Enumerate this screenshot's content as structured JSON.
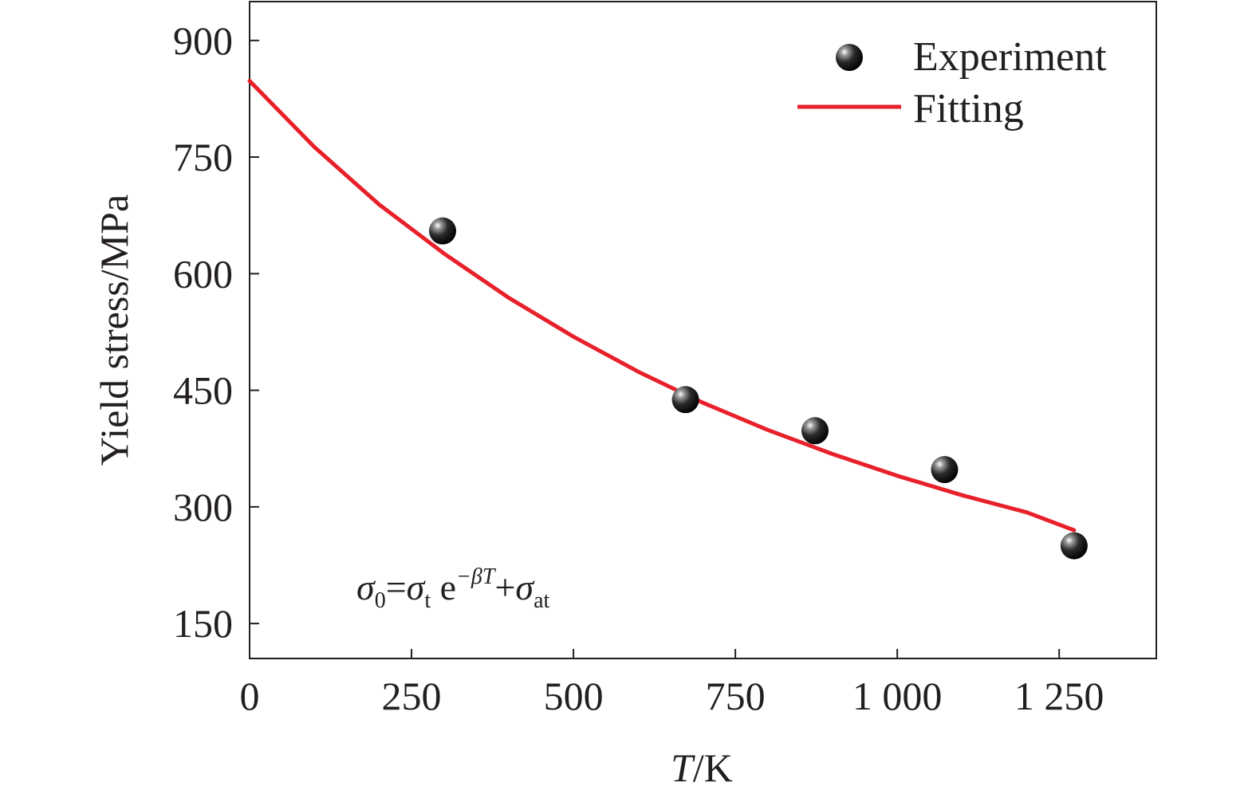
{
  "chart_data": {
    "type": "scatter",
    "xlabel_var": "T",
    "xlabel_unit": "/K",
    "ylabel": "Yield stress/MPa",
    "xlim": [
      0,
      1400
    ],
    "ylim": [
      105,
      950
    ],
    "x_ticks": [
      0,
      250,
      500,
      750,
      1000,
      1250
    ],
    "x_tick_labels": [
      "0",
      "250",
      "500",
      "750",
      "1 000",
      "1 250"
    ],
    "y_ticks": [
      150,
      300,
      450,
      600,
      750,
      900
    ],
    "y_tick_labels": [
      "150",
      "300",
      "450",
      "600",
      "750",
      "900"
    ],
    "series": [
      {
        "name": "Experiment",
        "kind": "scatter",
        "color": "#111111",
        "x": [
          298,
          673,
          873,
          1073,
          1273
        ],
        "y": [
          655,
          438,
          398,
          348,
          250
        ]
      },
      {
        "name": "Fitting",
        "kind": "line",
        "color": "#e8202a",
        "x": [
          0,
          100,
          200,
          300,
          400,
          500,
          600,
          700,
          800,
          900,
          1000,
          1100,
          1200,
          1273
        ],
        "y": [
          848,
          763,
          689,
          626,
          569,
          519,
          474,
          434,
          399,
          368,
          340,
          315,
          293,
          270
        ]
      }
    ],
    "legend_position": "top-right",
    "annotation": {
      "sigma": "σ",
      "sub_0": "0",
      "equals": "=",
      "sub_t": "t",
      "e": " e",
      "exponent": "−βT",
      "plus": "+",
      "sub_at": "at"
    }
  }
}
